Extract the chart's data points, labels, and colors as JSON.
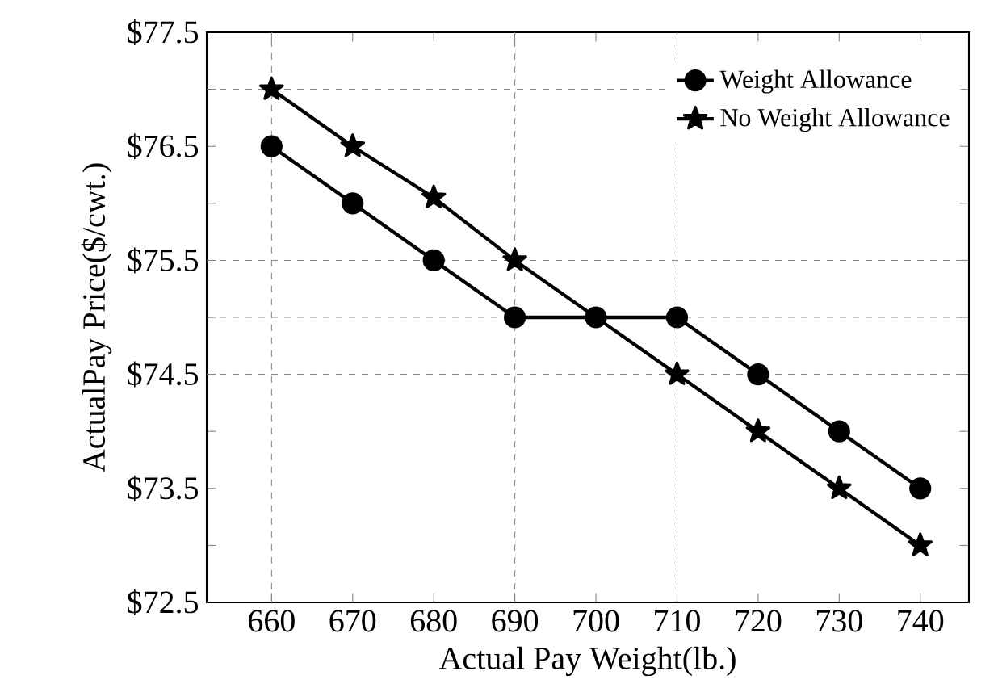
{
  "chart_data": {
    "type": "line",
    "xlabel": "Actual Pay Weight(lb.)",
    "ylabel": "ActualPay Price($/cwt.)",
    "x": [
      660,
      670,
      680,
      690,
      700,
      710,
      720,
      730,
      740
    ],
    "series": [
      {
        "name": "Weight Allowance",
        "color": "#000000",
        "marker": "circle",
        "values": [
          76.5,
          76.0,
          75.5,
          75.0,
          75.0,
          75.0,
          74.5,
          74.0,
          73.5
        ]
      },
      {
        "name": "No Weight Allowance",
        "color": "#000000",
        "marker": "star",
        "values": [
          77.0,
          76.5,
          76.05,
          75.5,
          null,
          74.5,
          74.0,
          73.5,
          73.0
        ]
      }
    ],
    "xlim": [
      652,
      746
    ],
    "xticks": [
      660,
      670,
      680,
      690,
      700,
      710,
      720,
      730,
      740
    ],
    "ylim": [
      72.5,
      77.5
    ],
    "yticks": [
      {
        "value": 72.5,
        "label": "$72.5"
      },
      {
        "value": 73.0,
        "label": null
      },
      {
        "value": 73.5,
        "label": "$73.5"
      },
      {
        "value": 74.0,
        "label": null
      },
      {
        "value": 74.5,
        "label": "$74.5"
      },
      {
        "value": 75.0,
        "label": null
      },
      {
        "value": 75.5,
        "label": "$75.5"
      },
      {
        "value": 76.0,
        "label": null
      },
      {
        "value": 76.5,
        "label": "$76.5"
      },
      {
        "value": 77.0,
        "label": null
      },
      {
        "value": 77.5,
        "label": "$77.5"
      }
    ],
    "ref_lines": [
      {
        "axis": "x",
        "value": 660,
        "line_style": "dashed",
        "color": "#888888"
      },
      {
        "axis": "x",
        "value": 690,
        "line_style": "dashed",
        "color": "#888888"
      },
      {
        "axis": "x",
        "value": 710,
        "line_style": "dashed",
        "color": "#888888"
      },
      {
        "axis": "y",
        "value": 77.0,
        "line_style": "dashed",
        "color": "#888888"
      },
      {
        "axis": "y",
        "value": 75.5,
        "line_style": "dashed",
        "color": "#888888"
      },
      {
        "axis": "y",
        "value": 75.0,
        "line_style": "dashed",
        "color": "#888888"
      },
      {
        "axis": "y",
        "value": 74.5,
        "line_style": "dashed",
        "color": "#888888"
      }
    ],
    "legend": "top right",
    "grid": false,
    "line_style": "solid"
  }
}
